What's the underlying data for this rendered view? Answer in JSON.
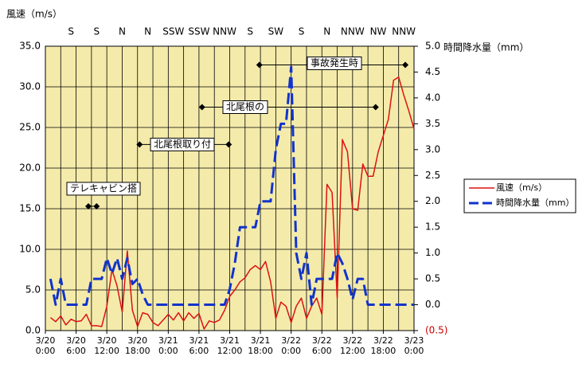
{
  "chart_data": {
    "type": "line",
    "y_title": "風速（m/s）",
    "y2_title": "時間降水量（mm）",
    "x": [
      1,
      2,
      3,
      4,
      5,
      6,
      7,
      8,
      9,
      10,
      11,
      12,
      13,
      14,
      15,
      16,
      17,
      18,
      19,
      20,
      21,
      22,
      23,
      24,
      25,
      26,
      27,
      28,
      29,
      30,
      31,
      32,
      33,
      34,
      35,
      36,
      37,
      38,
      39,
      40,
      41,
      42,
      43,
      44,
      45,
      46,
      47,
      48,
      49,
      50,
      51,
      52,
      53,
      54,
      55,
      56,
      57,
      58,
      59,
      60,
      61,
      62,
      63,
      64,
      65,
      66,
      67,
      68,
      69,
      70,
      71,
      72
    ],
    "xlim": [
      0,
      72
    ],
    "xticks": [
      {
        "value": 0,
        "label": "3/20 0:00"
      },
      {
        "value": 6,
        "label": "3/20 6:00"
      },
      {
        "value": 12,
        "label": "3/20 12:00"
      },
      {
        "value": 18,
        "label": "3/20 18:00"
      },
      {
        "value": 24,
        "label": "3/21 0:00"
      },
      {
        "value": 30,
        "label": "3/21 6:00"
      },
      {
        "value": 36,
        "label": "3/21 12:00"
      },
      {
        "value": 42,
        "label": "3/21 18:00"
      },
      {
        "value": 48,
        "label": "3/22 0:00"
      },
      {
        "value": 54,
        "label": "3/22 6:00"
      },
      {
        "value": 60,
        "label": "3/22 12:00"
      },
      {
        "value": 66,
        "label": "3/22 18:00"
      },
      {
        "value": 72,
        "label": "3/23 0:00"
      }
    ],
    "x_grid_interval": 3,
    "ylim": [
      0,
      35
    ],
    "yticks": [
      {
        "value": 0,
        "label": "0.0"
      },
      {
        "value": 5,
        "label": "5.0"
      },
      {
        "value": 10,
        "label": "10.0"
      },
      {
        "value": 15,
        "label": "15.0"
      },
      {
        "value": 20,
        "label": "20.0"
      },
      {
        "value": 25,
        "label": "25.0"
      },
      {
        "value": 30,
        "label": "30.0"
      },
      {
        "value": 35,
        "label": "35.0"
      }
    ],
    "y2lim": [
      -0.5,
      5.0
    ],
    "y2ticks": [
      {
        "value": -0.5,
        "label": "(0.5)",
        "color": "#cc0000"
      },
      {
        "value": 0,
        "label": "0.0"
      },
      {
        "value": 0.5,
        "label": "0.5"
      },
      {
        "value": 1,
        "label": "1.0"
      },
      {
        "value": 1.5,
        "label": "1.5"
      },
      {
        "value": 2,
        "label": "2.0"
      },
      {
        "value": 2.5,
        "label": "2.5"
      },
      {
        "value": 3,
        "label": "3.0"
      },
      {
        "value": 3.5,
        "label": "3.5"
      },
      {
        "value": 4,
        "label": "4.0"
      },
      {
        "value": 4.5,
        "label": "4.5"
      },
      {
        "value": 5,
        "label": "5.0"
      }
    ],
    "grid": true,
    "background": "#f4ebab",
    "legend": "right",
    "series": [
      {
        "name": "風速（m/s）",
        "color": "#dd1111",
        "dash": false,
        "values": [
          1.6,
          1.1,
          1.8,
          0.7,
          1.4,
          1.1,
          1.2,
          2.0,
          0.6,
          0.6,
          0.5,
          3.0,
          7.5,
          5.5,
          2.3,
          9.8,
          2.5,
          0.5,
          2.2,
          2.0,
          1.0,
          0.6,
          1.3,
          2.0,
          1.3,
          2.2,
          1.2,
          2.2,
          1.5,
          2.1,
          0.2,
          1.2,
          1.0,
          1.3,
          2.5,
          4.2,
          5.0,
          6.0,
          6.5,
          7.5,
          8.0,
          7.5,
          8.5,
          6.0,
          1.5,
          3.5,
          3.0,
          1.0,
          3.0,
          4.0,
          1.5,
          3.0,
          4.0,
          2.0,
          18.0,
          17.0,
          4.0,
          23.5,
          22.0,
          15.0,
          14.8,
          20.5,
          19.0,
          19.0,
          22.0,
          24.0,
          26.0,
          30.8,
          31.2,
          29.0,
          27.0,
          24.8
        ]
      },
      {
        "name": "時間降水量（mm）",
        "color": "#1133cc",
        "dash": true,
        "axis": "y2",
        "values": [
          0.5,
          0.0,
          0.5,
          0.0,
          0.0,
          0.0,
          0.0,
          0.0,
          0.5,
          0.5,
          0.5,
          0.9,
          0.6,
          0.9,
          0.5,
          0.9,
          0.4,
          0.5,
          0.2,
          0.0,
          0.0,
          0.0,
          0.0,
          0.0,
          0.0,
          0.0,
          0.0,
          0.0,
          0.0,
          0.0,
          0.0,
          0.0,
          0.0,
          0.0,
          0.0,
          0.3,
          0.8,
          1.5,
          1.5,
          1.5,
          1.5,
          2.0,
          2.0,
          2.0,
          3.0,
          3.5,
          3.5,
          4.6,
          1.0,
          0.5,
          1.0,
          0.0,
          0.5,
          0.5,
          0.5,
          0.5,
          1.0,
          0.8,
          0.5,
          0.1,
          0.5,
          0.5,
          0.0,
          0.0,
          0.0,
          0.0,
          0.0,
          0.0,
          0.0,
          0.0,
          0.0,
          0.0
        ]
      }
    ],
    "wind_directions": {
      "x": [
        5,
        10,
        15,
        20,
        25,
        30,
        35,
        40,
        45,
        50,
        55,
        60,
        65,
        70
      ],
      "labels": [
        "S",
        "S",
        "N",
        "N",
        "SSW",
        "SSW",
        "NNW",
        "S",
        "SW",
        "S",
        "N",
        "NNW",
        "NW",
        "NNW"
      ]
    },
    "annotations": [
      {
        "label": "テレキャビン搭",
        "x": [
          8.4,
          10.0
        ],
        "y": 15.3
      },
      {
        "label": "北尾根取り付",
        "x": [
          18.4,
          35.8
        ],
        "y": 22.9
      },
      {
        "label": "北尾根の",
        "x": [
          30.6,
          64.5
        ],
        "y": 27.5
      },
      {
        "label": "事故発生時",
        "x": [
          41.8,
          70.3
        ],
        "y": 32.7
      }
    ]
  }
}
